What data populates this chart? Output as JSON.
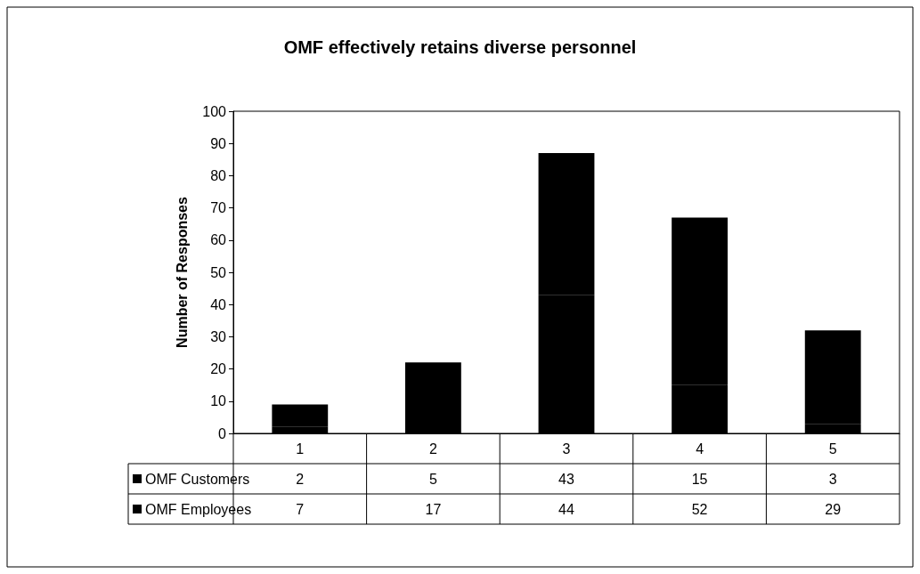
{
  "chart_data": {
    "type": "bar",
    "title": "OMF effectively retains diverse personnel",
    "ylabel": "Number of Responses",
    "categories": [
      "1",
      "2",
      "3",
      "4",
      "5"
    ],
    "stacked": true,
    "data_labels": true,
    "grid": false,
    "legend": "bottom left",
    "ylim": [
      0,
      100
    ],
    "yticks": [
      0,
      10,
      20,
      30,
      40,
      50,
      60,
      70,
      80,
      90,
      100
    ],
    "series": [
      {
        "name": "OMF Customers",
        "color": "#000000",
        "values": [
          2,
          5,
          43,
          15,
          3
        ]
      },
      {
        "name": "OMF Employees",
        "color": "#000000",
        "values": [
          7,
          17,
          44,
          52,
          29
        ]
      }
    ]
  }
}
